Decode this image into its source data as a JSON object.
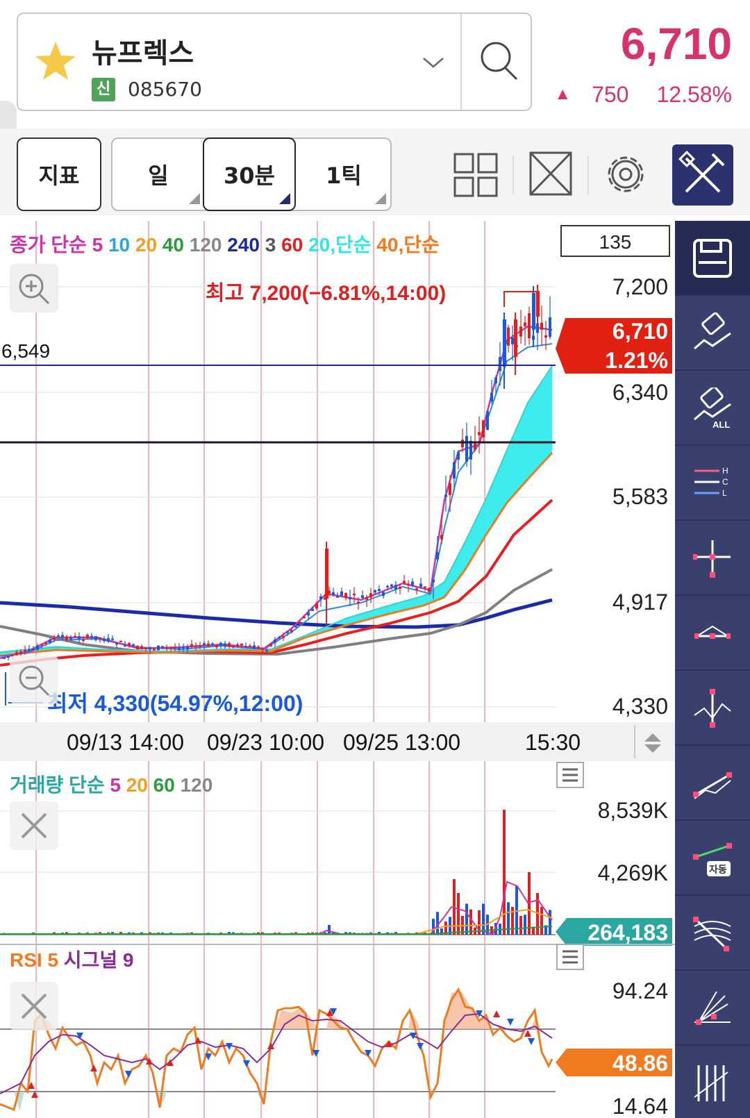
{
  "stock": {
    "name": "뉴프렉스",
    "badge": "신",
    "code": "085670",
    "price": "6,710",
    "change": "750",
    "change_pct": "12.58%"
  },
  "toolbar": {
    "indicator_label": "지표",
    "periods": [
      "일",
      "30분",
      "1틱"
    ],
    "selected_period": "30분"
  },
  "main_chart": {
    "ma_legend": [
      {
        "text": "종가 단순",
        "color": "#cc33aa"
      },
      {
        "text": "5",
        "color": "#cc33aa"
      },
      {
        "text": "10",
        "color": "#2aa7d8"
      },
      {
        "text": "20",
        "color": "#f0a020"
      },
      {
        "text": "40",
        "color": "#2a9a3a"
      },
      {
        "text": "120",
        "color": "#888888"
      },
      {
        "text": "240",
        "color": "#1a2a9a"
      },
      {
        "text": "3",
        "color": "#555555"
      },
      {
        "text": "60",
        "color": "#e02020"
      },
      {
        "text": "20,단순",
        "color": "#33e5e5"
      },
      {
        "text": "40,단순",
        "color": "#f07a20"
      }
    ],
    "count_box": "135",
    "high_label": "최고 7,200(−6.81%,14:00)",
    "low_label": "최저 4,330(54.97%,12:00)",
    "hline_label": "6,549",
    "price_axis": [
      "7,200",
      "6,340",
      "5,583",
      "4,917",
      "4,330"
    ],
    "current_price": "6,710",
    "current_pct": "1.21%",
    "time_axis": [
      "09/13 14:00",
      "09/23 10:00",
      "09/25 13:00",
      "15:30"
    ]
  },
  "volume_chart": {
    "legend": [
      {
        "text": "거래량 단순",
        "color": "#2aa7a0"
      },
      {
        "text": "5",
        "color": "#cc33aa"
      },
      {
        "text": "20",
        "color": "#f0a020"
      },
      {
        "text": "60",
        "color": "#2a9a3a"
      },
      {
        "text": "120",
        "color": "#888888"
      }
    ],
    "axis": [
      "8,539K",
      "4,269K"
    ],
    "current": "264,183"
  },
  "rsi_chart": {
    "legend": [
      {
        "text": "RSI 5",
        "color": "#f07a20"
      },
      {
        "text": "시그널 9",
        "color": "#8a2a9a"
      }
    ],
    "axis_top": "94.24",
    "axis_bottom": "14.64",
    "current": "48.86"
  },
  "colors": {
    "up": "#d6336c",
    "candle_up": "#e02020",
    "candle_down": "#1a5ad8",
    "accent": "#2c3270",
    "current_price_bg": "#e02010",
    "volume_badge_bg": "#2aa7a0",
    "rsi_badge_bg": "#f07a20"
  }
}
